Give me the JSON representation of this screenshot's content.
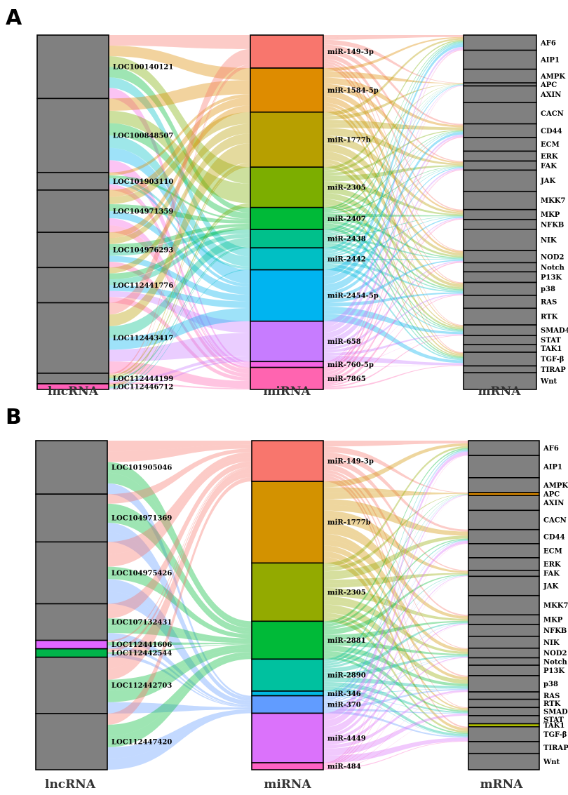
{
  "panels": [
    {
      "letter": "A",
      "columns": {
        "left": "lncRNA",
        "middle": "miRNA",
        "right": "mRNA"
      },
      "lncRNA": [
        {
          "name": "LOC100140121",
          "value": 9.0,
          "color": "#808080"
        },
        {
          "name": "LOC100848507",
          "value": 10.5,
          "color": "#808080"
        },
        {
          "name": "LOC101903110",
          "value": 2.5,
          "color": "#808080"
        },
        {
          "name": "LOC104971359",
          "value": 6.0,
          "color": "#808080"
        },
        {
          "name": "LOC104976293",
          "value": 5.0,
          "color": "#808080"
        },
        {
          "name": "LOC112441776",
          "value": 5.0,
          "color": "#808080"
        },
        {
          "name": "LOC112443417",
          "value": 10.0,
          "color": "#808080"
        },
        {
          "name": "LOC112444199",
          "value": 1.5,
          "color": "#808080"
        },
        {
          "name": "LOC112446712",
          "value": 0.8,
          "color": "#ff5fb8"
        }
      ],
      "miRNA": [
        {
          "name": "miR-149-3p",
          "value": 4.5,
          "color": "#f8766d"
        },
        {
          "name": "miR-1584-5p",
          "value": 6.0,
          "color": "#de8c00"
        },
        {
          "name": "miR-1777b",
          "value": 7.5,
          "color": "#b79f00"
        },
        {
          "name": "miR-2305",
          "value": 5.5,
          "color": "#7cae00"
        },
        {
          "name": "miR-2407",
          "value": 3.0,
          "color": "#00ba38"
        },
        {
          "name": "miR-2438",
          "value": 2.5,
          "color": "#00c08b"
        },
        {
          "name": "miR-2442",
          "value": 3.0,
          "color": "#00bfc4"
        },
        {
          "name": "miR-2454-5p",
          "value": 7.0,
          "color": "#00b4f0"
        },
        {
          "name": "miR-658",
          "value": 5.5,
          "color": "#c77cff"
        },
        {
          "name": "miR-760-5p",
          "value": 0.8,
          "color": "#f564e3"
        },
        {
          "name": "miR-7865",
          "value": 3.0,
          "color": "#ff64b0"
        }
      ],
      "mRNA": [
        {
          "name": "AF6",
          "value": 2.0,
          "color": "#808080"
        },
        {
          "name": "AIP1",
          "value": 2.5,
          "color": "#808080"
        },
        {
          "name": "AMPK",
          "value": 1.8,
          "color": "#808080"
        },
        {
          "name": "APC",
          "value": 0.4,
          "color": "#808080"
        },
        {
          "name": "AXIN",
          "value": 2.2,
          "color": "#808080"
        },
        {
          "name": "CACN",
          "value": 2.8,
          "color": "#808080"
        },
        {
          "name": "CD44",
          "value": 1.8,
          "color": "#808080"
        },
        {
          "name": "ECM",
          "value": 1.8,
          "color": "#808080"
        },
        {
          "name": "ERK",
          "value": 1.3,
          "color": "#808080"
        },
        {
          "name": "FAK",
          "value": 1.2,
          "color": "#808080"
        },
        {
          "name": "JAK",
          "value": 2.8,
          "color": "#808080"
        },
        {
          "name": "MKK7",
          "value": 2.4,
          "color": "#808080"
        },
        {
          "name": "MKP",
          "value": 1.3,
          "color": "#808080"
        },
        {
          "name": "NFKB",
          "value": 1.3,
          "color": "#808080"
        },
        {
          "name": "NIK",
          "value": 2.8,
          "color": "#808080"
        },
        {
          "name": "NOD2",
          "value": 1.6,
          "color": "#808080"
        },
        {
          "name": "Notch",
          "value": 1.2,
          "color": "#808080"
        },
        {
          "name": "P13K",
          "value": 1.4,
          "color": "#808080"
        },
        {
          "name": "p38",
          "value": 1.7,
          "color": "#808080"
        },
        {
          "name": "RAS",
          "value": 1.7,
          "color": "#808080"
        },
        {
          "name": "RTK",
          "value": 2.2,
          "color": "#808080"
        },
        {
          "name": "SMAD4",
          "value": 1.4,
          "color": "#808080"
        },
        {
          "name": "STAT",
          "value": 1.2,
          "color": "#808080"
        },
        {
          "name": "TAK1",
          "value": 1.0,
          "color": "#808080"
        },
        {
          "name": "TGF-β",
          "value": 1.8,
          "color": "#808080"
        },
        {
          "name": "TIRAP",
          "value": 0.9,
          "color": "#808080"
        },
        {
          "name": "Wnt",
          "value": 2.2,
          "color": "#808080"
        }
      ]
    },
    {
      "letter": "B",
      "columns": {
        "left": "lncRNA",
        "middle": "miRNA",
        "right": "mRNA"
      },
      "lncRNA": [
        {
          "name": "LOC101905046",
          "value": 9.5,
          "color": "#808080"
        },
        {
          "name": "LOC104971369",
          "value": 8.5,
          "color": "#808080"
        },
        {
          "name": "LOC104975426",
          "value": 11.0,
          "color": "#808080"
        },
        {
          "name": "LOC107132431",
          "value": 6.5,
          "color": "#808080"
        },
        {
          "name": "LOC112441606",
          "value": 1.5,
          "color": "#e066ff"
        },
        {
          "name": "LOC112442544",
          "value": 1.5,
          "color": "#00b34a"
        },
        {
          "name": "LOC112442703",
          "value": 10.0,
          "color": "#808080"
        },
        {
          "name": "LOC112447420",
          "value": 10.0,
          "color": "#808080"
        }
      ],
      "miRNA": [
        {
          "name": "miR-149-3p",
          "value": 7.0,
          "color": "#f8766d"
        },
        {
          "name": "miR-1777b",
          "value": 14.0,
          "color": "#d39200"
        },
        {
          "name": "miR-2305",
          "value": 10.0,
          "color": "#93aa00"
        },
        {
          "name": "miR-2881",
          "value": 6.5,
          "color": "#00ba38"
        },
        {
          "name": "miR-2890",
          "value": 5.5,
          "color": "#00c19f"
        },
        {
          "name": "miR-346",
          "value": 0.8,
          "color": "#00b9e3"
        },
        {
          "name": "miR-370",
          "value": 3.0,
          "color": "#619cff"
        },
        {
          "name": "miR-4449",
          "value": 8.5,
          "color": "#db72fb"
        },
        {
          "name": "miR-484",
          "value": 1.2,
          "color": "#ff61c3"
        }
      ],
      "mRNA": [
        {
          "name": "AF6",
          "value": 2.0,
          "color": "#808080"
        },
        {
          "name": "AIP1",
          "value": 3.0,
          "color": "#808080"
        },
        {
          "name": "AMPK",
          "value": 2.0,
          "color": "#808080"
        },
        {
          "name": "APC",
          "value": 0.4,
          "color": "#de8c00"
        },
        {
          "name": "AXIN",
          "value": 2.0,
          "color": "#808080"
        },
        {
          "name": "CACN",
          "value": 2.6,
          "color": "#808080"
        },
        {
          "name": "CD44",
          "value": 1.9,
          "color": "#808080"
        },
        {
          "name": "ECM",
          "value": 1.9,
          "color": "#808080"
        },
        {
          "name": "ERK",
          "value": 1.7,
          "color": "#808080"
        },
        {
          "name": "FAK",
          "value": 0.8,
          "color": "#808080"
        },
        {
          "name": "JAK",
          "value": 2.6,
          "color": "#808080"
        },
        {
          "name": "MKK7",
          "value": 2.6,
          "color": "#808080"
        },
        {
          "name": "MKP",
          "value": 1.3,
          "color": "#808080"
        },
        {
          "name": "NFKB",
          "value": 1.6,
          "color": "#808080"
        },
        {
          "name": "NIK",
          "value": 1.6,
          "color": "#808080"
        },
        {
          "name": "NOD2",
          "value": 1.3,
          "color": "#808080"
        },
        {
          "name": "Notch",
          "value": 1.0,
          "color": "#808080"
        },
        {
          "name": "P13K",
          "value": 1.4,
          "color": "#808080"
        },
        {
          "name": "p38",
          "value": 2.2,
          "color": "#808080"
        },
        {
          "name": "RAS",
          "value": 1.0,
          "color": "#808080"
        },
        {
          "name": "RTK",
          "value": 1.1,
          "color": "#808080"
        },
        {
          "name": "SMAD4",
          "value": 1.1,
          "color": "#808080"
        },
        {
          "name": "STAT",
          "value": 1.1,
          "color": "#808080"
        },
        {
          "name": "TAK1",
          "value": 0.4,
          "color": "#b8c800"
        },
        {
          "name": "TGF-β",
          "value": 2.0,
          "color": "#808080"
        },
        {
          "name": "TIRAP",
          "value": 1.6,
          "color": "#808080"
        },
        {
          "name": "Wnt",
          "value": 2.2,
          "color": "#808080"
        }
      ]
    }
  ]
}
